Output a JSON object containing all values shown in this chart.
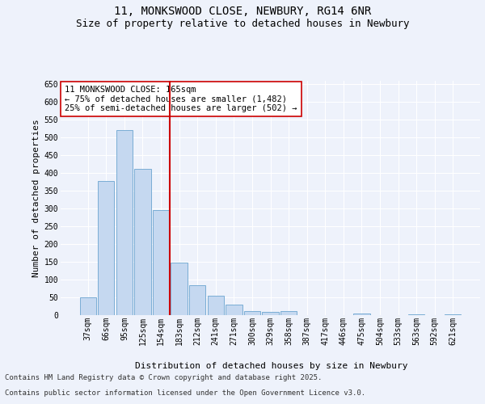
{
  "title_line1": "11, MONKSWOOD CLOSE, NEWBURY, RG14 6NR",
  "title_line2": "Size of property relative to detached houses in Newbury",
  "xlabel": "Distribution of detached houses by size in Newbury",
  "ylabel": "Number of detached properties",
  "categories": [
    "37sqm",
    "66sqm",
    "95sqm",
    "125sqm",
    "154sqm",
    "183sqm",
    "212sqm",
    "241sqm",
    "271sqm",
    "300sqm",
    "329sqm",
    "358sqm",
    "387sqm",
    "417sqm",
    "446sqm",
    "475sqm",
    "504sqm",
    "533sqm",
    "563sqm",
    "592sqm",
    "621sqm"
  ],
  "values": [
    50,
    378,
    521,
    412,
    297,
    147,
    85,
    55,
    30,
    11,
    8,
    11,
    1,
    0,
    0,
    4,
    0,
    0,
    3,
    0,
    3
  ],
  "bar_color": "#c5d8f0",
  "bar_edge_color": "#7aadd4",
  "vline_x_index": 4.5,
  "vline_color": "#cc0000",
  "annotation_text": "11 MONKSWOOD CLOSE: 165sqm\n← 75% of detached houses are smaller (1,482)\n25% of semi-detached houses are larger (502) →",
  "annotation_box_color": "#ffffff",
  "annotation_box_edge_color": "#cc0000",
  "ylim": [
    0,
    660
  ],
  "yticks": [
    0,
    50,
    100,
    150,
    200,
    250,
    300,
    350,
    400,
    450,
    500,
    550,
    600,
    650
  ],
  "background_color": "#eef2fb",
  "grid_color": "#ffffff",
  "footer_line1": "Contains HM Land Registry data © Crown copyright and database right 2025.",
  "footer_line2": "Contains public sector information licensed under the Open Government Licence v3.0.",
  "title_fontsize": 10,
  "subtitle_fontsize": 9,
  "axis_label_fontsize": 8,
  "tick_fontsize": 7,
  "annotation_fontsize": 7.5,
  "footer_fontsize": 6.5
}
